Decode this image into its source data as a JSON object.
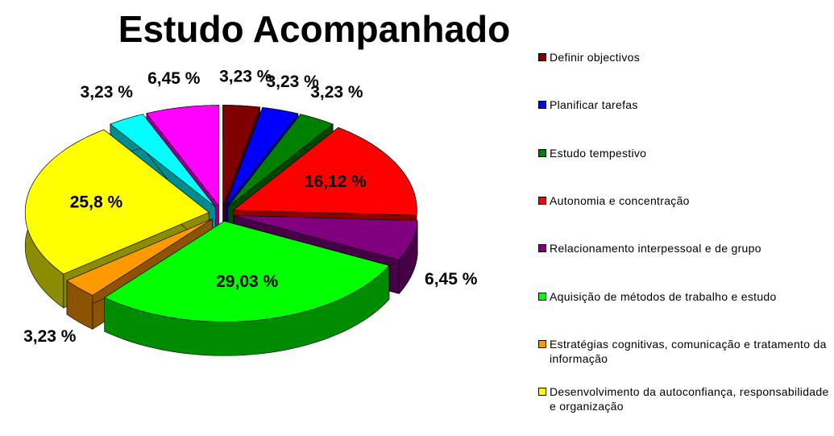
{
  "chart_data": {
    "type": "pie3d",
    "title": "Estudo Acompanhado",
    "categories": [
      "Definir objectivos",
      "Planificar tarefas",
      "Estudo tempestivo",
      "Autonomia e concentração",
      "Relacionamento  interpessoal  e de grupo",
      "Aquisição de métodos de trabalho  e estudo",
      "Estratégias cognitivas, comunicação e tratamento da informação",
      "Desenvolvimento  da autoconfiança, responsabilidade  e organização",
      null,
      null
    ],
    "values": [
      3.23,
      3.23,
      3.23,
      16.12,
      6.45,
      29.03,
      3.23,
      25.8,
      3.23,
      6.45
    ],
    "value_labels": [
      "3,23 %",
      "3,23 %",
      "3,23 %",
      "16,12 %",
      "6,45 %",
      "29,03 %",
      "3,23 %",
      "25,8 %",
      "3,23 %",
      "6,45 %"
    ],
    "colors": [
      "#800000",
      "#0000ff",
      "#008000",
      "#ff0000",
      "#800080",
      "#00ff00",
      "#ff9900",
      "#ffff00",
      "#00ffff",
      "#ff00ff"
    ],
    "legend": "right"
  }
}
